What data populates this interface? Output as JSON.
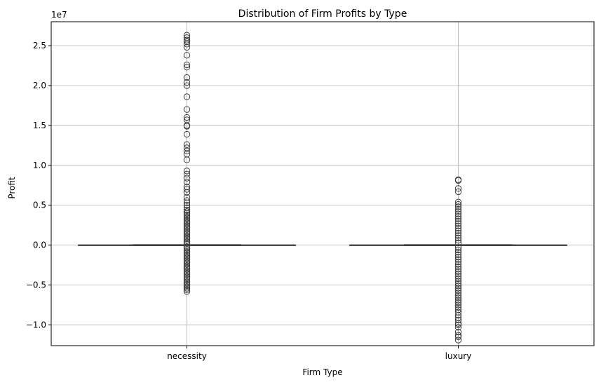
{
  "chart_data": {
    "type": "box",
    "title": "Distribution of Firm Profits by Type",
    "xlabel": "Firm Type",
    "ylabel": "Profit",
    "y_offset_label": "1e7",
    "ylim": [
      -12.6,
      28.0
    ],
    "y_unit_scale": 1000000,
    "y_ticks": [
      -10,
      -5,
      0,
      5,
      10,
      15,
      20,
      25
    ],
    "y_tick_labels": [
      "−1.0",
      "−0.5",
      "0.0",
      "0.5",
      "1.0",
      "1.5",
      "2.0",
      "2.5"
    ],
    "grid": true,
    "categories": [
      "necessity",
      "luxury"
    ],
    "colors": {
      "box_line": "#3d3d3d",
      "grid": "#b0b0b0",
      "axes": "#000000"
    },
    "boxes": [
      {
        "category": "necessity",
        "q1": -0.03,
        "median": 0.0,
        "q3": 0.03,
        "whisker_low": -0.07,
        "whisker_high": 0.07,
        "outliers": [
          26.3,
          26.0,
          25.7,
          25.5,
          25.2,
          24.8,
          23.8,
          22.6,
          22.3,
          21.0,
          20.4,
          20.0,
          18.6,
          17.0,
          16.0,
          15.7,
          15.0,
          14.9,
          13.9,
          12.6,
          12.2,
          11.8,
          11.4,
          10.7,
          9.3,
          8.9,
          8.4,
          7.9,
          7.3,
          7.0,
          6.6,
          6.0,
          5.6,
          5.3,
          5.0,
          4.7,
          4.4,
          4.2,
          4.0,
          3.8,
          3.6,
          3.4,
          3.2,
          3.0,
          2.8,
          2.6,
          2.4,
          2.2,
          2.0,
          1.8,
          1.6,
          1.4,
          1.2,
          1.0,
          0.8,
          0.6,
          0.4,
          0.2,
          -0.2,
          -0.4,
          -0.6,
          -0.8,
          -1.0,
          -1.2,
          -1.4,
          -1.6,
          -1.8,
          -2.0,
          -2.2,
          -2.4,
          -2.6,
          -2.8,
          -3.0,
          -3.2,
          -3.4,
          -3.6,
          -3.8,
          -4.0,
          -4.2,
          -4.4,
          -4.6,
          -4.8,
          -5.0,
          -5.2,
          -5.4,
          -5.6,
          -5.8
        ]
      },
      {
        "category": "luxury",
        "q1": -0.03,
        "median": 0.0,
        "q3": 0.03,
        "whisker_low": -0.07,
        "whisker_high": 0.07,
        "outliers": [
          8.2,
          8.1,
          7.1,
          6.7,
          5.4,
          5.1,
          4.8,
          4.5,
          4.2,
          3.9,
          3.6,
          3.3,
          3.0,
          2.7,
          2.4,
          2.1,
          1.8,
          1.5,
          1.2,
          0.9,
          0.6,
          0.3,
          -0.3,
          -0.6,
          -0.9,
          -1.2,
          -1.5,
          -1.8,
          -2.1,
          -2.4,
          -2.7,
          -3.0,
          -3.3,
          -3.6,
          -3.9,
          -4.2,
          -4.5,
          -4.8,
          -5.1,
          -5.4,
          -5.7,
          -6.0,
          -6.3,
          -6.6,
          -6.9,
          -7.2,
          -7.5,
          -7.8,
          -8.1,
          -8.4,
          -8.8,
          -9.1,
          -9.4,
          -9.8,
          -10.0,
          -10.3,
          -10.9,
          -11.3,
          -11.5,
          -11.9
        ]
      }
    ]
  }
}
